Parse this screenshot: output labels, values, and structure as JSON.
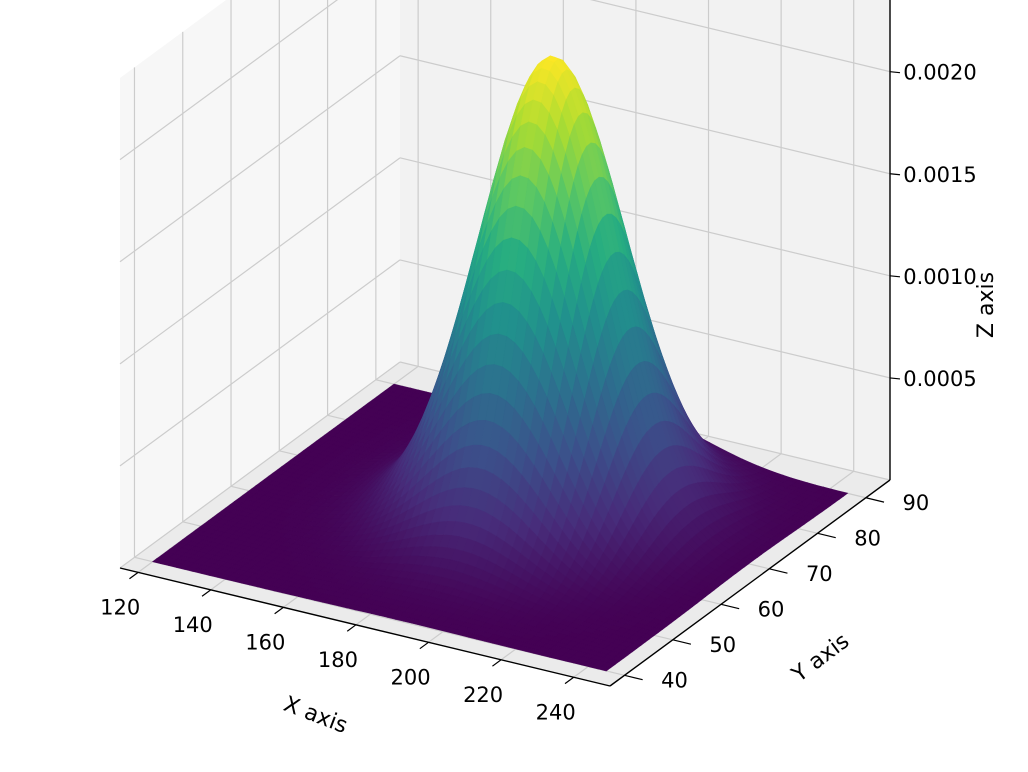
{
  "chart_data": {
    "type": "surface",
    "title": "",
    "xlabel": "X axis",
    "ylabel": "Y axis",
    "zlabel": "Z axis",
    "xlim": [
      115,
      250
    ],
    "ylim": [
      37,
      95
    ],
    "zlim": [
      0,
      0.0024
    ],
    "x_ticks": [
      120,
      140,
      160,
      180,
      200,
      220,
      240
    ],
    "x_tick_labels": [
      "120",
      "140",
      "160",
      "180",
      "200",
      "220",
      "240"
    ],
    "y_ticks": [
      40,
      50,
      60,
      70,
      80,
      90
    ],
    "y_tick_labels": [
      "40",
      "50",
      "60",
      "70",
      "80",
      "90"
    ],
    "z_ticks": [
      0.0005,
      0.001,
      0.0015,
      0.002
    ],
    "z_tick_labels": [
      "0.0005",
      "0.0010",
      "0.0015",
      "0.0020"
    ],
    "colormap": "viridis",
    "colormap_stops": [
      "#440154",
      "#472c7a",
      "#3b518b",
      "#2c718e",
      "#21908d",
      "#27ad81",
      "#5cc863",
      "#aadc32",
      "#fde725"
    ],
    "surface": {
      "function": "bivariate-gaussian",
      "peak_x": 190,
      "peak_y": 70,
      "peak_z": 0.00225,
      "x_range": [
        120,
        245
      ],
      "y_range": [
        40,
        90
      ]
    },
    "pane_color": "#f2f2f2",
    "grid": true
  }
}
